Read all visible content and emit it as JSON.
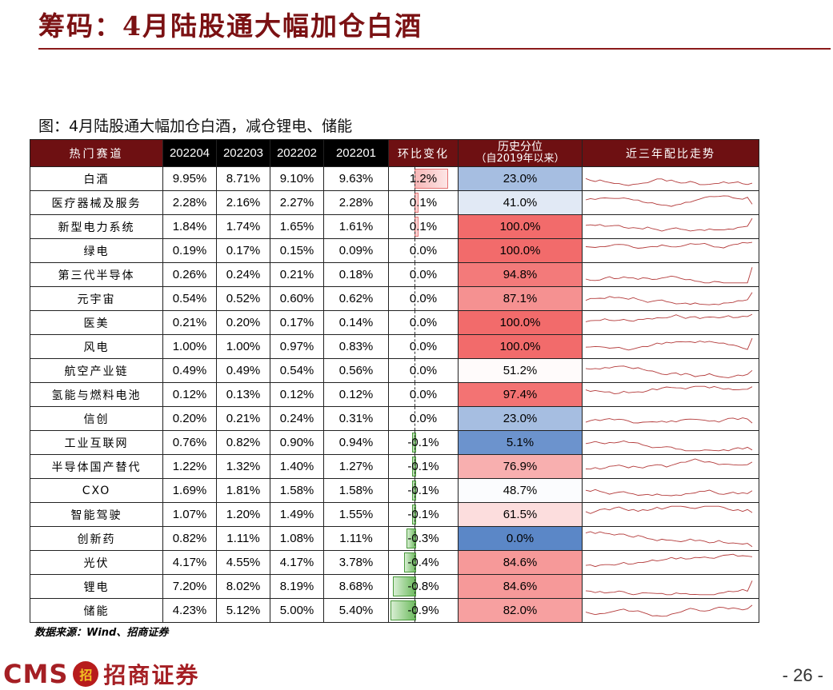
{
  "page": {
    "title": "筹码：4月陆股通大幅加仓白酒",
    "page_number": "- 26 -"
  },
  "caption": "图：4月陆股通大幅加仓白酒，减仓锂电、储能",
  "source": "数据来源：Wind、招商证券",
  "logo": {
    "cms": "CMS",
    "mark": "招",
    "name": "招商证券"
  },
  "colors": {
    "header": "#6e1012",
    "title": "#7b1113",
    "spark": "#b33a3a",
    "red_high": "#f26b6b",
    "blue_low": "#5b87c7",
    "green_bar": "#6dbb5e"
  },
  "chart_data": {
    "type": "table",
    "headers": {
      "name": "热门赛道",
      "months": [
        "202204",
        "202203",
        "202202",
        "202201"
      ],
      "change": "环比变化",
      "percentile_top": "历史分位",
      "percentile_sub": "（自2019年以来）",
      "trend": "近三年配比走势"
    },
    "rows": [
      {
        "name": "白酒",
        "values": [
          "9.95%",
          "8.71%",
          "9.10%",
          "9.63%"
        ],
        "change": "1.2%",
        "change_value": 1.2,
        "percentile": "23.0%",
        "percentile_value": 23.0
      },
      {
        "name": "医疗器械及服务",
        "values": [
          "2.28%",
          "2.16%",
          "2.27%",
          "2.28%"
        ],
        "change": "0.1%",
        "change_value": 0.1,
        "percentile": "41.0%",
        "percentile_value": 41.0
      },
      {
        "name": "新型电力系统",
        "values": [
          "1.84%",
          "1.74%",
          "1.65%",
          "1.61%"
        ],
        "change": "0.1%",
        "change_value": 0.1,
        "percentile": "100.0%",
        "percentile_value": 100.0
      },
      {
        "name": "绿电",
        "values": [
          "0.19%",
          "0.17%",
          "0.15%",
          "0.09%"
        ],
        "change": "0.0%",
        "change_value": 0.0,
        "percentile": "100.0%",
        "percentile_value": 100.0
      },
      {
        "name": "第三代半导体",
        "values": [
          "0.26%",
          "0.24%",
          "0.21%",
          "0.18%"
        ],
        "change": "0.0%",
        "change_value": 0.0,
        "percentile": "94.8%",
        "percentile_value": 94.8
      },
      {
        "name": "元宇宙",
        "values": [
          "0.54%",
          "0.52%",
          "0.60%",
          "0.62%"
        ],
        "change": "0.0%",
        "change_value": 0.0,
        "percentile": "87.1%",
        "percentile_value": 87.1
      },
      {
        "name": "医美",
        "values": [
          "0.21%",
          "0.20%",
          "0.17%",
          "0.14%"
        ],
        "change": "0.0%",
        "change_value": 0.0,
        "percentile": "100.0%",
        "percentile_value": 100.0
      },
      {
        "name": "风电",
        "values": [
          "1.00%",
          "1.00%",
          "0.97%",
          "0.83%"
        ],
        "change": "0.0%",
        "change_value": 0.0,
        "percentile": "100.0%",
        "percentile_value": 100.0
      },
      {
        "name": "航空产业链",
        "values": [
          "0.49%",
          "0.49%",
          "0.54%",
          "0.56%"
        ],
        "change": "0.0%",
        "change_value": 0.0,
        "percentile": "51.2%",
        "percentile_value": 51.2
      },
      {
        "name": "氢能与燃料电池",
        "values": [
          "0.12%",
          "0.13%",
          "0.12%",
          "0.12%"
        ],
        "change": "0.0%",
        "change_value": 0.0,
        "percentile": "97.4%",
        "percentile_value": 97.4
      },
      {
        "name": "信创",
        "values": [
          "0.20%",
          "0.21%",
          "0.24%",
          "0.31%"
        ],
        "change": "0.0%",
        "change_value": 0.0,
        "percentile": "23.0%",
        "percentile_value": 23.0
      },
      {
        "name": "工业互联网",
        "values": [
          "0.76%",
          "0.82%",
          "0.90%",
          "0.94%"
        ],
        "change": "-0.1%",
        "change_value": -0.1,
        "percentile": "5.1%",
        "percentile_value": 5.1
      },
      {
        "name": "半导体国产替代",
        "values": [
          "1.22%",
          "1.32%",
          "1.40%",
          "1.27%"
        ],
        "change": "-0.1%",
        "change_value": -0.1,
        "percentile": "76.9%",
        "percentile_value": 76.9
      },
      {
        "name": "CXO",
        "values": [
          "1.69%",
          "1.81%",
          "1.58%",
          "1.58%"
        ],
        "change": "-0.1%",
        "change_value": -0.1,
        "percentile": "48.7%",
        "percentile_value": 48.7
      },
      {
        "name": "智能驾驶",
        "values": [
          "1.07%",
          "1.20%",
          "1.49%",
          "1.55%"
        ],
        "change": "-0.1%",
        "change_value": -0.1,
        "percentile": "61.5%",
        "percentile_value": 61.5
      },
      {
        "name": "创新药",
        "values": [
          "0.82%",
          "1.11%",
          "1.08%",
          "1.11%"
        ],
        "change": "-0.3%",
        "change_value": -0.3,
        "percentile": "0.0%",
        "percentile_value": 0.0
      },
      {
        "name": "光伏",
        "values": [
          "4.17%",
          "4.55%",
          "4.17%",
          "3.78%"
        ],
        "change": "-0.4%",
        "change_value": -0.4,
        "percentile": "84.6%",
        "percentile_value": 84.6
      },
      {
        "name": "锂电",
        "values": [
          "7.20%",
          "8.02%",
          "8.19%",
          "8.68%"
        ],
        "change": "-0.8%",
        "change_value": -0.8,
        "percentile": "84.6%",
        "percentile_value": 84.6
      },
      {
        "name": "储能",
        "values": [
          "4.23%",
          "5.12%",
          "5.00%",
          "5.40%"
        ],
        "change": "-0.9%",
        "change_value": -0.9,
        "percentile": "82.0%",
        "percentile_value": 82.0
      }
    ]
  }
}
